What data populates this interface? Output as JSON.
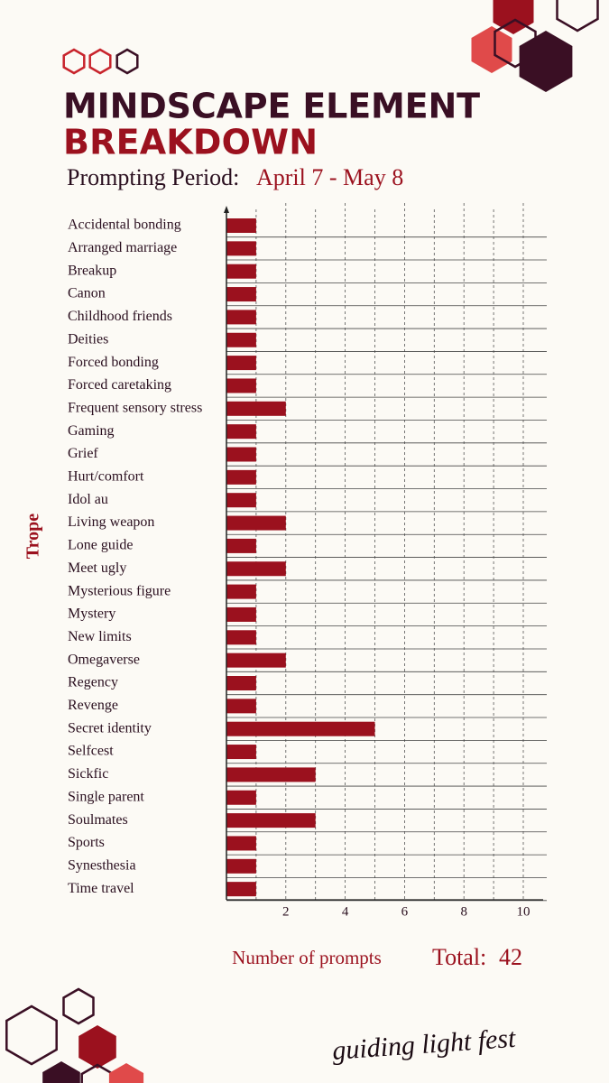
{
  "chart_data": {
    "type": "bar",
    "orientation": "horizontal",
    "title": "MINDSCAPE ELEMENT",
    "title_line2": "BREAKDOWN",
    "subtitle_label": "Prompting Period:",
    "subtitle": "April 7 - May 8",
    "y_label": "Trope",
    "x_label": "Number of prompts",
    "total_label": "Total:",
    "total": 42,
    "footer": "guiding light fest",
    "categories": [
      "Accidental bonding",
      "Arranged marriage",
      "Breakup",
      "Canon",
      "Childhood friends",
      "Deities",
      "Forced bonding",
      "Forced caretaking",
      "Frequent sensory stress",
      "Gaming",
      "Grief",
      "Hurt/comfort",
      "Idol au",
      "Living weapon",
      "Lone guide",
      "Meet ugly",
      "Mysterious figure",
      "Mystery",
      "New limits",
      "Omegaverse",
      "Regency",
      "Revenge",
      "Secret identity",
      "Selfcest",
      "Sickfic",
      "Single parent",
      "Soulmates",
      "Sports",
      "Synesthesia",
      "Time travel"
    ],
    "values": [
      1,
      1,
      1,
      1,
      1,
      1,
      1,
      1,
      2,
      1,
      1,
      1,
      1,
      2,
      1,
      2,
      1,
      1,
      1,
      2,
      1,
      1,
      5,
      1,
      3,
      1,
      3,
      1,
      1,
      1
    ],
    "color": "#9b111e",
    "xlim": [
      0,
      10.5
    ],
    "xticks": [
      2,
      4,
      6,
      8,
      10
    ],
    "x_minor_ticks": [
      1,
      3,
      5,
      7,
      9
    ],
    "grid": true
  }
}
